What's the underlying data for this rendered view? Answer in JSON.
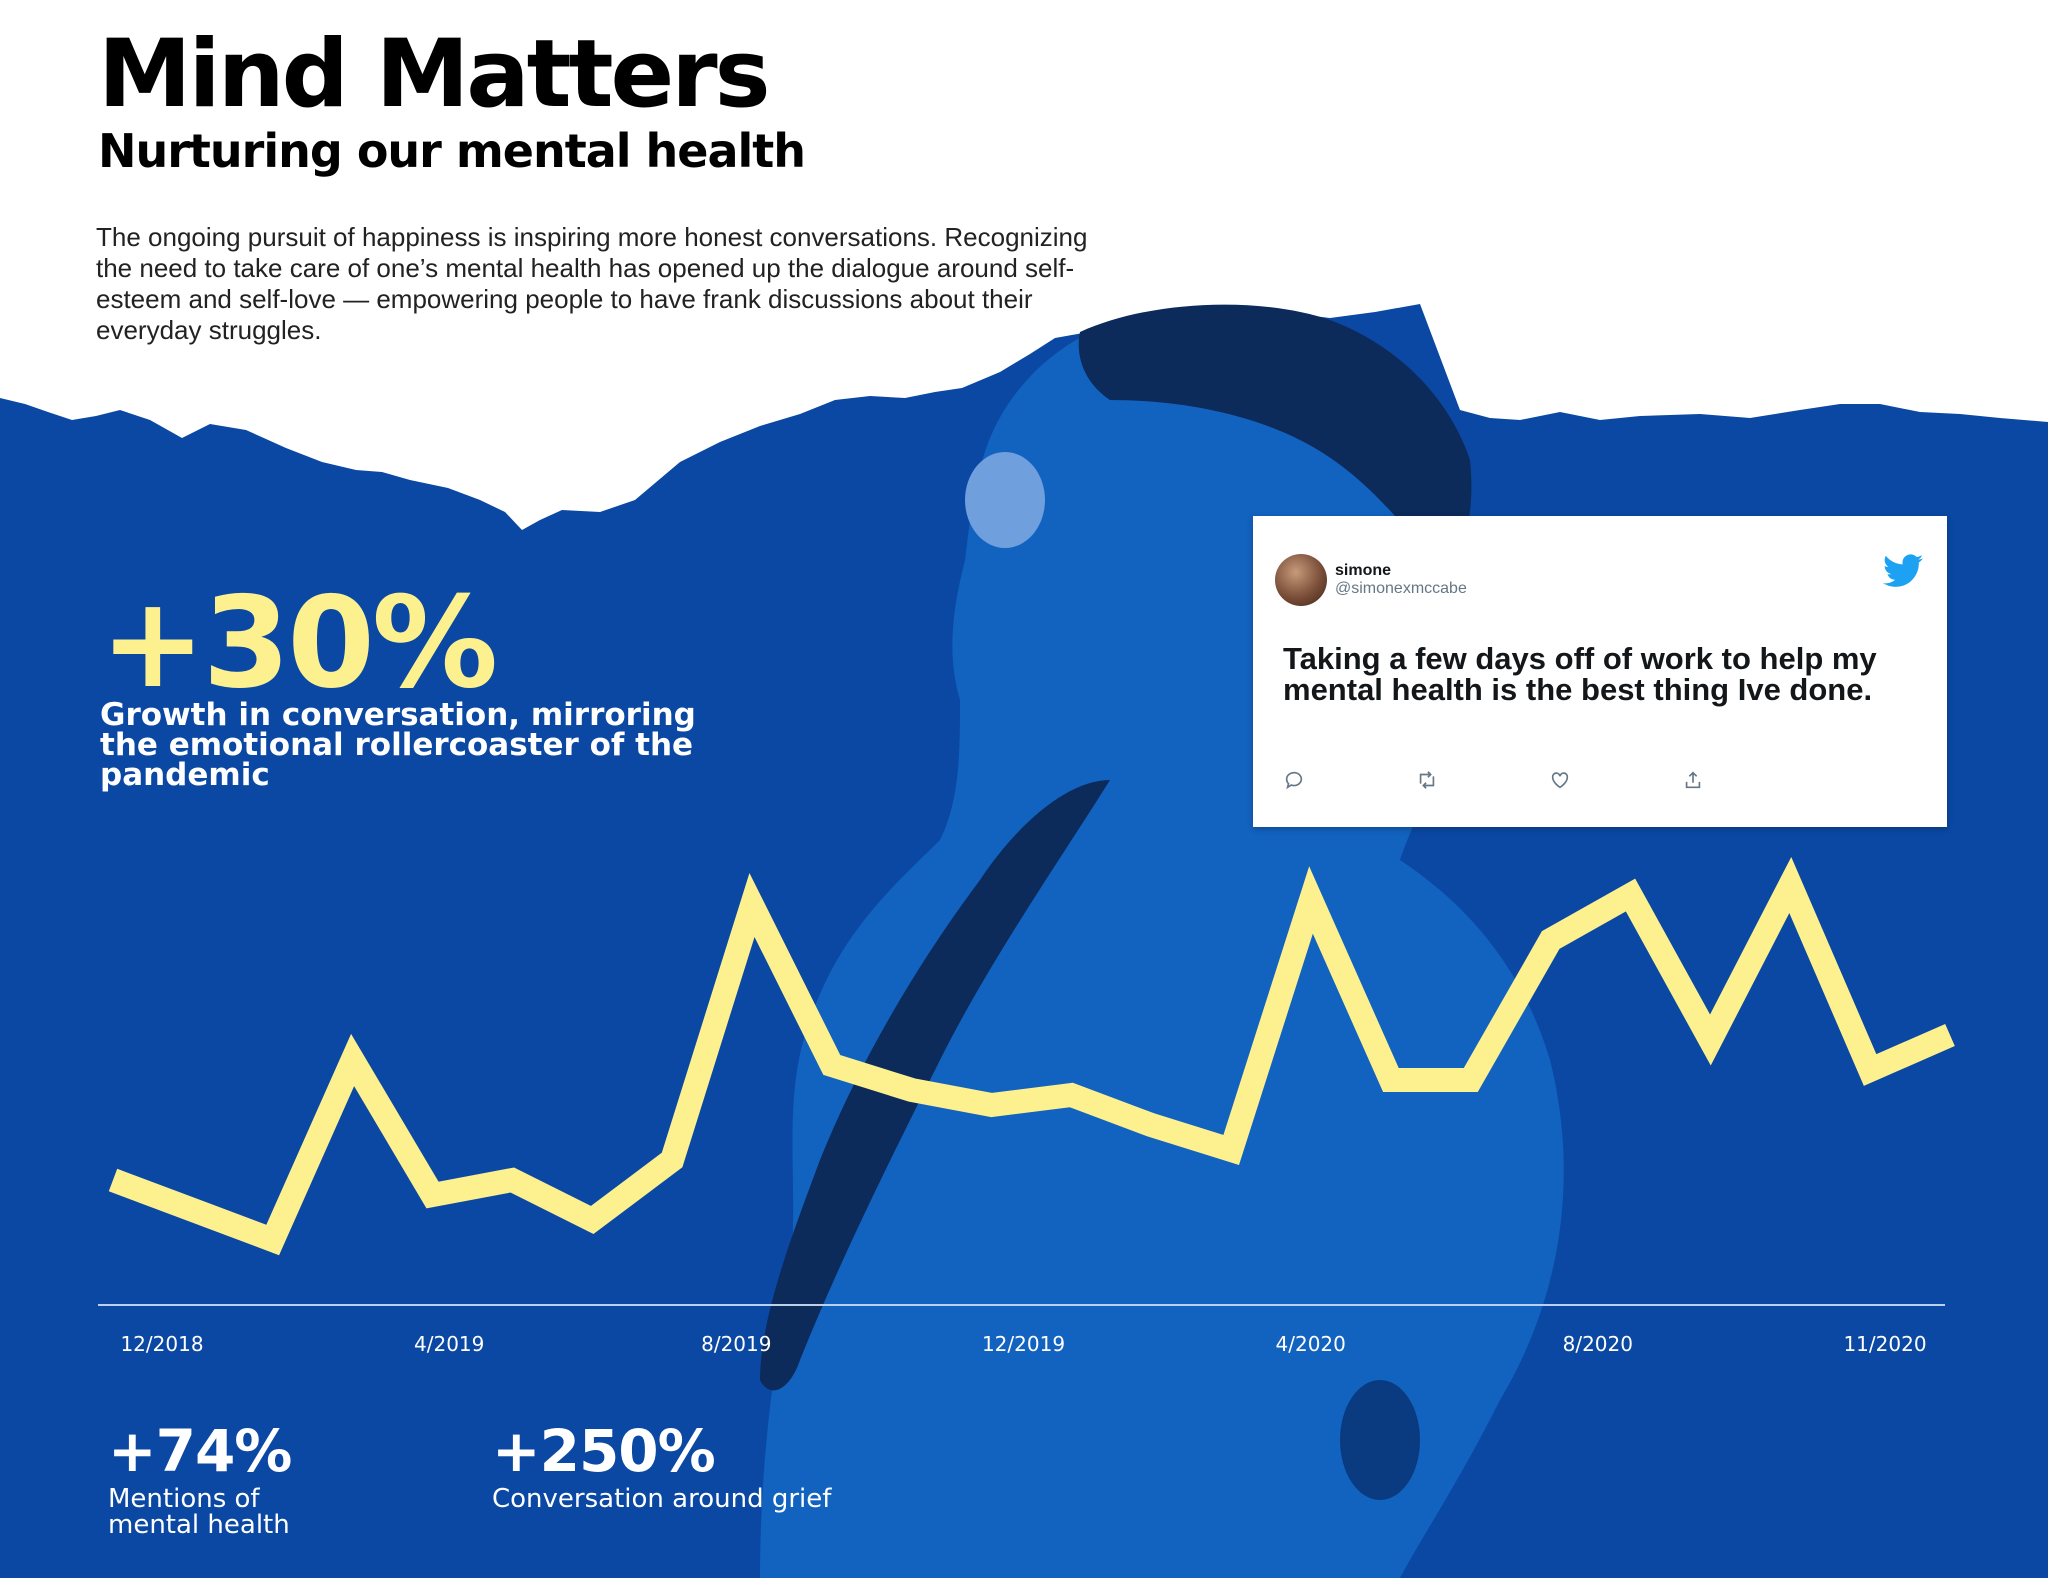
{
  "header": {
    "title": "Mind Matters",
    "subtitle": "Nurturing our mental health",
    "intro": "The ongoing pursuit of happiness is inspiring more honest conversations. Recognizing the need to take care of one’s mental health has opened up the dialogue around self-esteem and self-love — empowering people to have frank discussions about their everyday struggles."
  },
  "highlight": {
    "value": "+30%",
    "description": "Growth in conversation, mirroring the emotional rollercoaster of the pandemic"
  },
  "stats": [
    {
      "value": "+74%",
      "description": "Mentions of mental health"
    },
    {
      "value": "+250%",
      "description": "Conversation around grief"
    }
  ],
  "tweet": {
    "name": "simone",
    "handle": "@simonexmccabe",
    "text": "Taking a few days off of work to help my mental health is the best thing Ive done.",
    "icons": [
      "reply-icon",
      "retweet-icon",
      "like-icon",
      "share-icon",
      "twitter-bird-icon"
    ]
  },
  "colors": {
    "background_blue": "#0a48a3",
    "accent_yellow": "#fdf08f",
    "text_white": "#ffffff"
  },
  "chart_data": {
    "type": "line",
    "title": "",
    "xlabel": "",
    "ylabel": "",
    "x_tick_labels": [
      "12/2018",
      "4/2019",
      "8/2019",
      "12/2019",
      "4/2020",
      "8/2020",
      "11/2020"
    ],
    "x": [
      1,
      2,
      3,
      4,
      5,
      6,
      7,
      8,
      9,
      10,
      11,
      12,
      13,
      14,
      15,
      16,
      17,
      18,
      19,
      20,
      21,
      22,
      23,
      24
    ],
    "values": [
      24,
      18,
      12,
      48,
      21,
      24,
      16,
      28,
      79,
      47,
      42,
      39,
      41,
      35,
      30,
      80,
      44,
      44,
      72,
      81,
      52,
      83,
      46,
      53
    ],
    "ylim": [
      0,
      100
    ],
    "grid": false,
    "legend": "none"
  }
}
